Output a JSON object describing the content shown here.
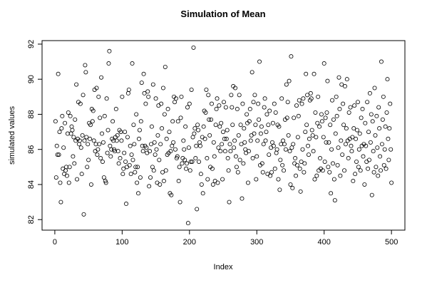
{
  "chart_data": {
    "type": "scatter",
    "title": "Simulation of Mean",
    "xlabel": "Index",
    "ylabel": "simulated values",
    "color": "#000000",
    "xlim": [
      -18.96,
      519.96
    ],
    "ylim": [
      81.4,
      92.2
    ],
    "xticks": [
      0,
      100,
      200,
      300,
      400,
      500
    ],
    "yticks": [
      82,
      84,
      86,
      88,
      90,
      92
    ],
    "x": [
      1,
      2,
      3,
      4,
      5,
      6,
      7,
      8,
      9,
      10,
      11,
      12,
      13,
      14,
      15,
      16,
      17,
      18,
      19,
      20,
      21,
      22,
      23,
      24,
      25,
      26,
      27,
      28,
      29,
      30,
      31,
      32,
      33,
      34,
      35,
      36,
      37,
      38,
      39,
      40,
      41,
      42,
      43,
      44,
      45,
      46,
      47,
      48,
      49,
      50,
      51,
      52,
      53,
      54,
      55,
      56,
      57,
      58,
      59,
      60,
      61,
      62,
      63,
      64,
      65,
      66,
      67,
      68,
      69,
      70,
      71,
      72,
      73,
      74,
      75,
      76,
      77,
      78,
      79,
      80,
      81,
      82,
      83,
      84,
      85,
      86,
      87,
      88,
      89,
      90,
      91,
      92,
      93,
      94,
      95,
      96,
      97,
      98,
      99,
      100,
      101,
      102,
      103,
      104,
      105,
      106,
      107,
      108,
      109,
      110,
      111,
      112,
      113,
      114,
      115,
      116,
      117,
      118,
      119,
      120,
      121,
      122,
      123,
      124,
      125,
      126,
      127,
      128,
      129,
      130,
      131,
      132,
      133,
      134,
      135,
      136,
      137,
      138,
      139,
      140,
      141,
      142,
      143,
      144,
      145,
      146,
      147,
      148,
      149,
      150,
      151,
      152,
      153,
      154,
      155,
      156,
      157,
      158,
      159,
      160,
      161,
      162,
      163,
      164,
      165,
      166,
      167,
      168,
      169,
      170,
      171,
      172,
      173,
      174,
      175,
      176,
      177,
      178,
      179,
      180,
      181,
      182,
      183,
      184,
      185,
      186,
      187,
      188,
      189,
      190,
      191,
      192,
      193,
      194,
      195,
      196,
      197,
      198,
      199,
      200,
      201,
      202,
      203,
      204,
      205,
      206,
      207,
      208,
      209,
      210,
      211,
      212,
      213,
      214,
      215,
      216,
      217,
      218,
      219,
      220,
      221,
      222,
      223,
      224,
      225,
      226,
      227,
      228,
      229,
      230,
      231,
      232,
      233,
      234,
      235,
      236,
      237,
      238,
      239,
      240,
      241,
      242,
      243,
      244,
      245,
      246,
      247,
      248,
      249,
      250,
      251,
      252,
      253,
      254,
      255,
      256,
      257,
      258,
      259,
      260,
      261,
      262,
      263,
      264,
      265,
      266,
      267,
      268,
      269,
      270,
      271,
      272,
      273,
      274,
      275,
      276,
      277,
      278,
      279,
      280,
      281,
      282,
      283,
      284,
      285,
      286,
      287,
      288,
      289,
      290,
      291,
      292,
      293,
      294,
      295,
      296,
      297,
      298,
      299,
      300,
      301,
      302,
      303,
      304,
      305,
      306,
      307,
      308,
      309,
      310,
      311,
      312,
      313,
      314,
      315,
      316,
      317,
      318,
      319,
      320,
      321,
      322,
      323,
      324,
      325,
      326,
      327,
      328,
      329,
      330,
      331,
      332,
      333,
      334,
      335,
      336,
      337,
      338,
      339,
      340,
      341,
      342,
      343,
      344,
      345,
      346,
      347,
      348,
      349,
      350,
      351,
      352,
      353,
      354,
      355,
      356,
      357,
      358,
      359,
      360,
      361,
      362,
      363,
      364,
      365,
      366,
      367,
      368,
      369,
      370,
      371,
      372,
      373,
      374,
      375,
      376,
      377,
      378,
      379,
      380,
      381,
      382,
      383,
      384,
      385,
      386,
      387,
      388,
      389,
      390,
      391,
      392,
      393,
      394,
      395,
      396,
      397,
      398,
      399,
      400,
      401,
      402,
      403,
      404,
      405,
      406,
      407,
      408,
      409,
      410,
      411,
      412,
      413,
      414,
      415,
      416,
      417,
      418,
      419,
      420,
      421,
      422,
      423,
      424,
      425,
      426,
      427,
      428,
      429,
      430,
      431,
      432,
      433,
      434,
      435,
      436,
      437,
      438,
      439,
      440,
      441,
      442,
      443,
      444,
      445,
      446,
      447,
      448,
      449,
      450,
      451,
      452,
      453,
      454,
      455,
      456,
      457,
      458,
      459,
      460,
      461,
      462,
      463,
      464,
      465,
      466,
      467,
      468,
      469,
      470,
      471,
      472,
      473,
      474,
      475,
      476,
      477,
      478,
      479,
      480,
      481,
      482,
      483,
      484,
      485,
      486,
      487,
      488,
      489,
      490,
      491,
      492,
      493,
      494,
      495,
      496,
      497,
      498,
      499,
      500
    ],
    "values": [
      87.6,
      84.4,
      86.2,
      85.7,
      90.3,
      85.7,
      87.0,
      84.1,
      83.0,
      87.2,
      87.9,
      84.9,
      86.1,
      84.6,
      87.5,
      84.8,
      85.0,
      84.5,
      86.9,
      88.1,
      84.1,
      85.0,
      87.9,
      86.9,
      87.3,
      87.1,
      85.6,
      86.7,
      85.2,
      87.7,
      86.5,
      89.7,
      84.3,
      86.6,
      88.7,
      86.3,
      86.5,
      88.6,
      86.1,
      84.6,
      86.8,
      89.1,
      82.3,
      86.5,
      90.8,
      90.4,
      86.7,
      85.0,
      86.3,
      85.4,
      87.5,
      86.6,
      87.4,
      84.0,
      88.3,
      87.6,
      88.2,
      86.5,
      89.4,
      85.9,
      86.3,
      89.5,
      85.7,
      86.0,
      89.0,
      86.3,
      87.8,
      85.5,
      90.1,
      86.9,
      85.3,
      86.4,
      84.4,
      87.9,
      84.2,
      84.1,
      88.9,
      85.8,
      87.1,
      90.9,
      91.6,
      86.2,
      85.6,
      86.0,
      86.6,
      87.6,
      86.5,
      86.0,
      85.9,
      86.7,
      88.3,
      86.5,
      86.8,
      85.9,
      85.2,
      87.1,
      85.5,
      87.0,
      86.5,
      89.0,
      84.6,
      84.9,
      85.8,
      87.0,
      85.3,
      82.9,
      85.0,
      86.7,
      89.2,
      89.4,
      85.1,
      86.2,
      84.6,
      85.7,
      90.9,
      85.4,
      87.4,
      86.3,
      84.7,
      85.0,
      88.0,
      84.1,
      85.0,
      83.5,
      86.6,
      87.1,
      84.4,
      87.6,
      89.8,
      86.2,
      85.9,
      90.3,
      89.2,
      86.2,
      88.6,
      86.1,
      85.8,
      89.3,
      89.0,
      83.9,
      85.9,
      84.4,
      86.3,
      87.3,
      85.0,
      89.7,
      84.8,
      86.4,
      85.7,
      88.9,
      86.0,
      84.1,
      86.8,
      88.5,
      85.4,
      84.0,
      86.3,
      88.6,
      87.2,
      84.7,
      89.5,
      84.2,
      88.0,
      90.7,
      84.8,
      86.6,
      85.7,
      88.3,
      85.8,
      87.0,
      83.5,
      85.9,
      83.4,
      86.2,
      87.6,
      86.4,
      89.0,
      88.7,
      86.0,
      88.9,
      85.5,
      85.6,
      87.6,
      84.2,
      85.0,
      83.0,
      87.8,
      89.0,
      85.2,
      85.5,
      86.5,
      86.0,
      85.4,
      87.3,
      84.9,
      85.2,
      88.4,
      81.8,
      86.1,
      88.6,
      84.8,
      85.3,
      89.4,
      85.3,
      86.7,
      91.8,
      86.9,
      87.2,
      85.5,
      86.2,
      82.6,
      87.4,
      87.1,
      85.3,
      86.4,
      86.2,
      84.6,
      84.0,
      86.7,
      83.5,
      87.3,
      88.2,
      86.6,
      88.1,
      89.4,
      85.5,
      84.3,
      89.1,
      87.7,
      86.8,
      85.0,
      87.7,
      88.6,
      84.9,
      84.0,
      86.4,
      85.6,
      84.2,
      87.4,
      88.3,
      88.9,
      84.1,
      86.1,
      88.5,
      87.3,
      85.9,
      87.5,
      86.3,
      84.3,
      87.0,
      88.7,
      86.6,
      85.9,
      88.4,
      86.6,
      87.1,
      85.5,
      84.8,
      83.0,
      86.3,
      85.9,
      89.1,
      88.4,
      87.4,
      89.6,
      86.1,
      86.5,
      89.5,
      85.6,
      85.0,
      88.3,
      84.7,
      86.8,
      89.1,
      85.4,
      87.4,
      86.3,
      83.2,
      88.6,
      85.2,
      87.2,
      86.4,
      86.0,
      85.8,
      88.0,
      87.5,
      84.1,
      85.9,
      87.6,
      88.3,
      86.5,
      86.8,
      90.4,
      85.5,
      88.7,
      86.9,
      89.1,
      87.4,
      84.3,
      85.6,
      86.5,
      88.6,
      87.7,
      91.0,
      85.1,
      86.9,
      87.3,
      85.2,
      84.7,
      86.3,
      88.4,
      88.9,
      86.5,
      87.0,
      88.0,
      84.6,
      87.4,
      85.7,
      88.2,
      84.5,
      86.1,
      84.7,
      86.4,
      87.5,
      86.2,
      88.6,
      84.9,
      88.1,
      85.8,
      86.0,
      87.4,
      84.3,
      87.3,
      83.7,
      85.4,
      86.3,
      88.9,
      85.1,
      86.5,
      84.8,
      86.3,
      87.7,
      86.0,
      89.7,
      87.8,
      88.7,
      86.8,
      89.9,
      85.9,
      84.0,
      91.3,
      86.1,
      83.8,
      86.3,
      87.8,
      85.2,
      85.5,
      84.5,
      88.5,
      85.1,
      86.7,
      87.9,
      88.8,
      84.9,
      83.6,
      85.3,
      88.6,
      86.0,
      88.9,
      84.7,
      85.2,
      87.0,
      90.3,
      87.4,
      89.1,
      86.2,
      85.7,
      86.6,
      88.8,
      89.2,
      88.9,
      87.1,
      86.8,
      85.9,
      90.3,
      84.3,
      88.1,
      86.7,
      84.5,
      87.5,
      89.0,
      84.8,
      87.3,
      85.5,
      84.9,
      88.0,
      87.6,
      84.8,
      86.7,
      90.9,
      85.3,
      87.8,
      86.4,
      88.1,
      89.9,
      85.0,
      86.4,
      84.7,
      87.4,
      83.5,
      86.0,
      88.8,
      85.2,
      87.7,
      84.3,
      83.1,
      86.9,
      89.0,
      87.9,
      85.1,
      86.1,
      90.1,
      88.3,
      84.5,
      86.5,
      89.7,
      85.7,
      88.6,
      87.4,
      84.8,
      89.6,
      86.3,
      87.2,
      90.0,
      86.5,
      85.5,
      88.1,
      86.6,
      88.4,
      86.2,
      85.9,
      86.7,
      84.2,
      87.2,
      88.5,
      84.6,
      86.6,
      85.3,
      87.1,
      88.7,
      85.0,
      86.0,
      86.9,
      84.8,
      87.8,
      86.2,
      88.3,
      85.6,
      86.3,
      84.0,
      87.5,
      86.2,
      85.3,
      88.7,
      84.9,
      87.0,
      85.4,
      89.2,
      86.4,
      88.0,
      83.4,
      87.6,
      85.9,
      84.7,
      89.5,
      86.8,
      85.0,
      87.9,
      86.1,
      84.5,
      88.4,
      87.2,
      85.6,
      84.8,
      91.0,
      86.3,
      87.7,
      89.0,
      85.1,
      86.0,
      87.3,
      84.9,
      88.1,
      90.0,
      86.6,
      85.4,
      87.2,
      88.6,
      86.0,
      84.1
    ]
  }
}
